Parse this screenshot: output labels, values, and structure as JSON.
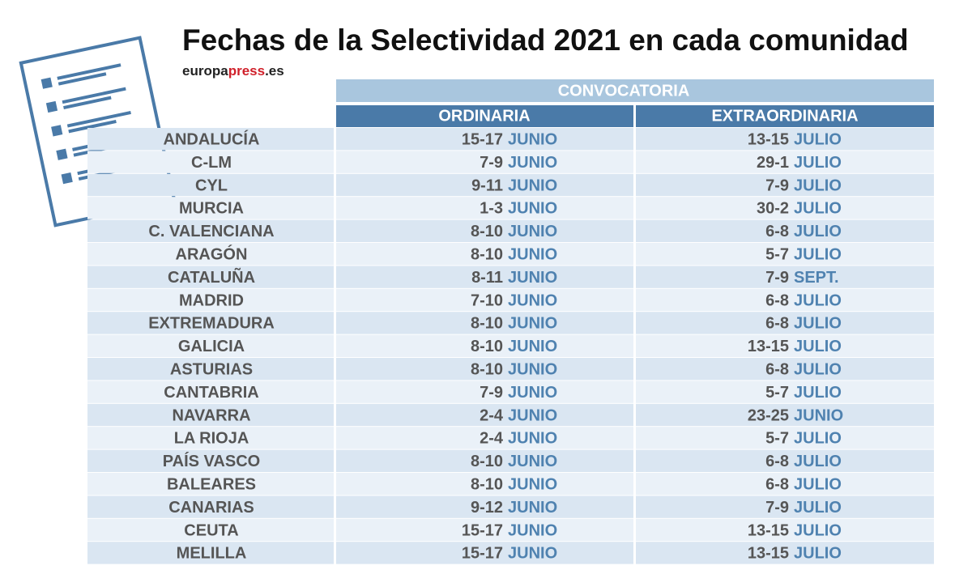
{
  "header": {
    "title": "Fechas de la Selectividad 2021 en cada comunidad",
    "brand": [
      "europa",
      "press",
      ".es"
    ]
  },
  "table": {
    "group_header": "CONVOCATORIA",
    "columns": [
      "ORDINARIA",
      "EXTRAORDINARIA"
    ],
    "rows": [
      [
        "ANDALUCÍA",
        "15-17",
        "JUNIO",
        "13-15",
        "JULIO"
      ],
      [
        "C-LM",
        "7-9",
        "JUNIO",
        "29-1",
        "JULIO"
      ],
      [
        "CYL",
        "9-11",
        "JUNIO",
        "7-9",
        "JULIO"
      ],
      [
        "MURCIA",
        "1-3",
        "JUNIO",
        "30-2",
        "JULIO"
      ],
      [
        "C. VALENCIANA",
        "8-10",
        "JUNIO",
        "6-8",
        "JULIO"
      ],
      [
        "ARAGÓN",
        "8-10",
        "JUNIO",
        "5-7",
        "JULIO"
      ],
      [
        "CATALUÑA",
        "8-11",
        "JUNIO",
        "7-9",
        "SEPT."
      ],
      [
        "MADRID",
        "7-10",
        "JUNIO",
        "6-8",
        "JULIO"
      ],
      [
        "EXTREMADURA",
        "8-10",
        "JUNIO",
        "6-8",
        "JULIO"
      ],
      [
        "GALICIA",
        "8-10",
        "JUNIO",
        "13-15",
        "JULIO"
      ],
      [
        "ASTURIAS",
        "8-10",
        "JUNIO",
        "6-8",
        "JULIO"
      ],
      [
        "CANTABRIA",
        "7-9",
        "JUNIO",
        "5-7",
        "JULIO"
      ],
      [
        "NAVARRA",
        "2-4",
        "JUNIO",
        "23-25",
        "JUNIO"
      ],
      [
        "LA RIOJA",
        "2-4",
        "JUNIO",
        "5-7",
        "JULIO"
      ],
      [
        "PAÍS VASCO",
        "8-10",
        "JUNIO",
        "6-8",
        "JULIO"
      ],
      [
        "BALEARES",
        "8-10",
        "JUNIO",
        "6-8",
        "JULIO"
      ],
      [
        "CANARIAS",
        "9-12",
        "JUNIO",
        "7-9",
        "JULIO"
      ],
      [
        "CEUTA",
        "15-17",
        "JUNIO",
        "13-15",
        "JULIO"
      ],
      [
        "MELILLA",
        "15-17",
        "JUNIO",
        "13-15",
        "JULIO"
      ]
    ]
  }
}
